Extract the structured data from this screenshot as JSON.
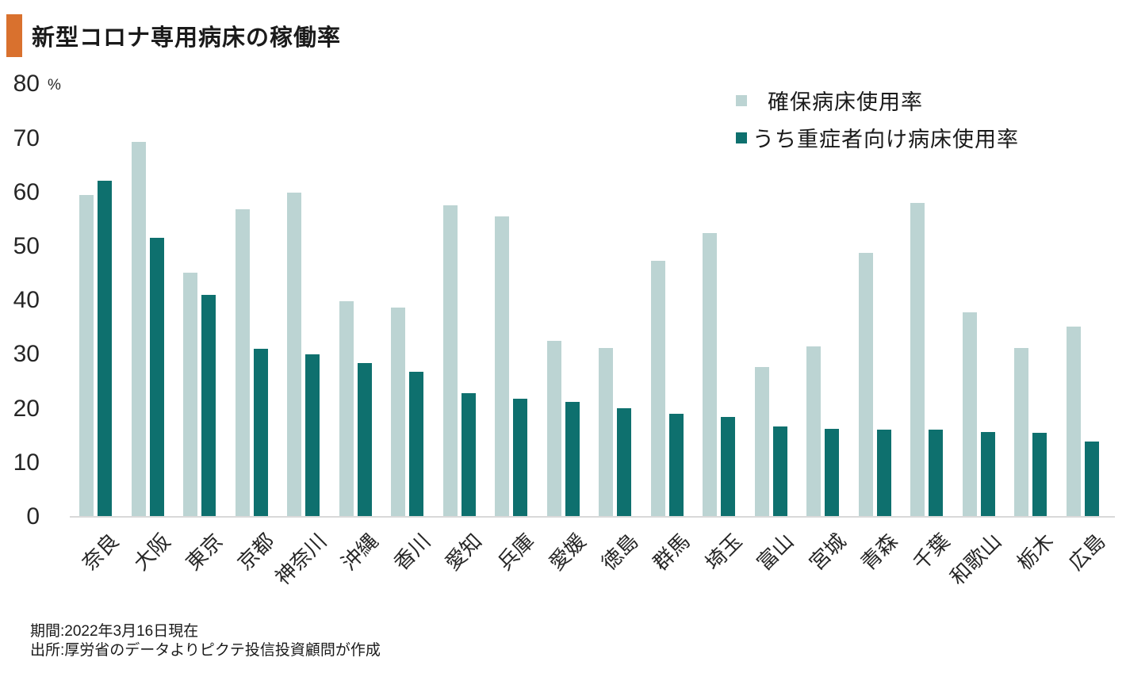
{
  "title": {
    "text": "新型コロナ専用病床の稼働率",
    "accent_color": "#d9712e"
  },
  "chart_data": {
    "type": "bar",
    "title": "新型コロナ専用病床の稼働率",
    "xlabel": "",
    "ylabel": "%",
    "unit": "%",
    "ylim": [
      0,
      80
    ],
    "y_ticks": [
      0,
      10,
      20,
      30,
      40,
      50,
      60,
      70,
      80
    ],
    "grid": false,
    "legend_position": "top-right",
    "categories": [
      "奈良",
      "大阪",
      "東京",
      "京都",
      "神奈川",
      "沖縄",
      "香川",
      "愛知",
      "兵庫",
      "愛媛",
      "徳島",
      "群馬",
      "埼玉",
      "富山",
      "宮城",
      "青森",
      "千葉",
      "和歌山",
      "栃木",
      "広島"
    ],
    "series": [
      {
        "name": "確保病床使用率",
        "color": "#bcd4d3",
        "values": [
          59.6,
          69.4,
          45.2,
          56.9,
          60.0,
          39.9,
          38.7,
          57.6,
          55.6,
          32.5,
          31.3,
          47.4,
          52.5,
          27.7,
          31.5,
          48.9,
          58.1,
          37.8,
          31.3,
          35.2
        ]
      },
      {
        "name": "うち重症者向け病床使用率",
        "color": "#0e706e",
        "values": [
          62.1,
          51.6,
          41.1,
          31.1,
          30.1,
          28.4,
          26.8,
          22.9,
          21.8,
          21.2,
          20.1,
          19.0,
          18.5,
          16.7,
          16.3,
          16.2,
          16.1,
          15.7,
          15.5,
          13.9
        ]
      }
    ],
    "axis_color": "#d9d9d9",
    "text_color": "#262626"
  },
  "footer": {
    "line1": "期間:2022年3月16日現在",
    "line2": "出所:厚労省のデータよりピクテ投信投資顧問が作成"
  }
}
